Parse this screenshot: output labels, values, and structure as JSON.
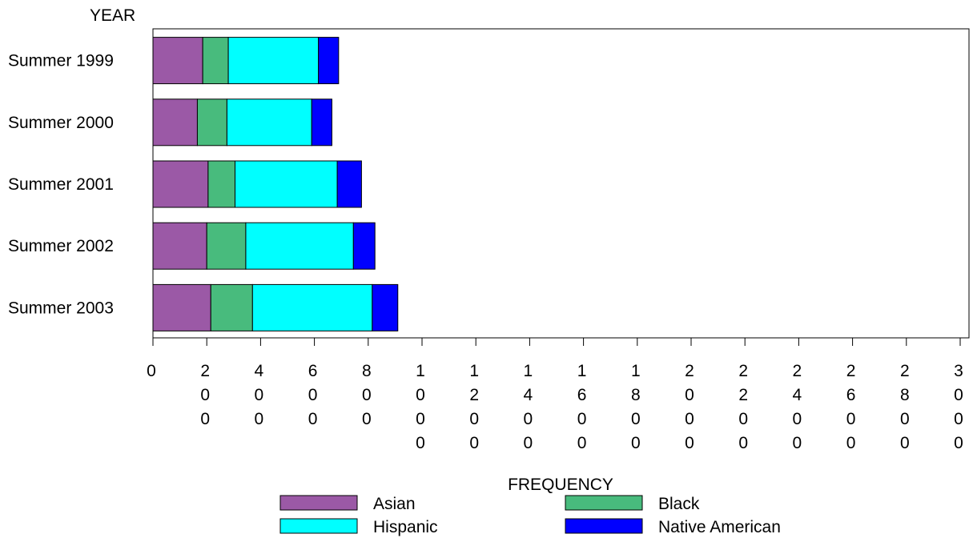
{
  "chart_data": {
    "type": "bar",
    "orientation": "horizontal",
    "stacked": true,
    "ylabel": "YEAR",
    "xlabel": "FREQUENCY",
    "categories": [
      "Summer 1999",
      "Summer 2000",
      "Summer 2001",
      "Summer 2002",
      "Summer 2003"
    ],
    "series": [
      {
        "name": "Asian",
        "color": "#9b59a6",
        "values": [
          185,
          165,
          205,
          200,
          215
        ]
      },
      {
        "name": "Black",
        "color": "#48bb7d",
        "values": [
          95,
          110,
          100,
          145,
          155
        ]
      },
      {
        "name": "Hispanic",
        "color": "#00ffff",
        "values": [
          335,
          315,
          380,
          400,
          445
        ]
      },
      {
        "name": "Native American",
        "color": "#0000ff",
        "values": [
          75,
          75,
          90,
          80,
          95
        ]
      }
    ],
    "xlim": [
      0,
      3000
    ],
    "xticks": [
      0,
      200,
      400,
      600,
      800,
      1000,
      1200,
      1400,
      1600,
      1800,
      2000,
      2200,
      2400,
      2600,
      2800,
      3000
    ],
    "tick_labels_vertical": true,
    "grid": false,
    "legend_position": "bottom"
  }
}
